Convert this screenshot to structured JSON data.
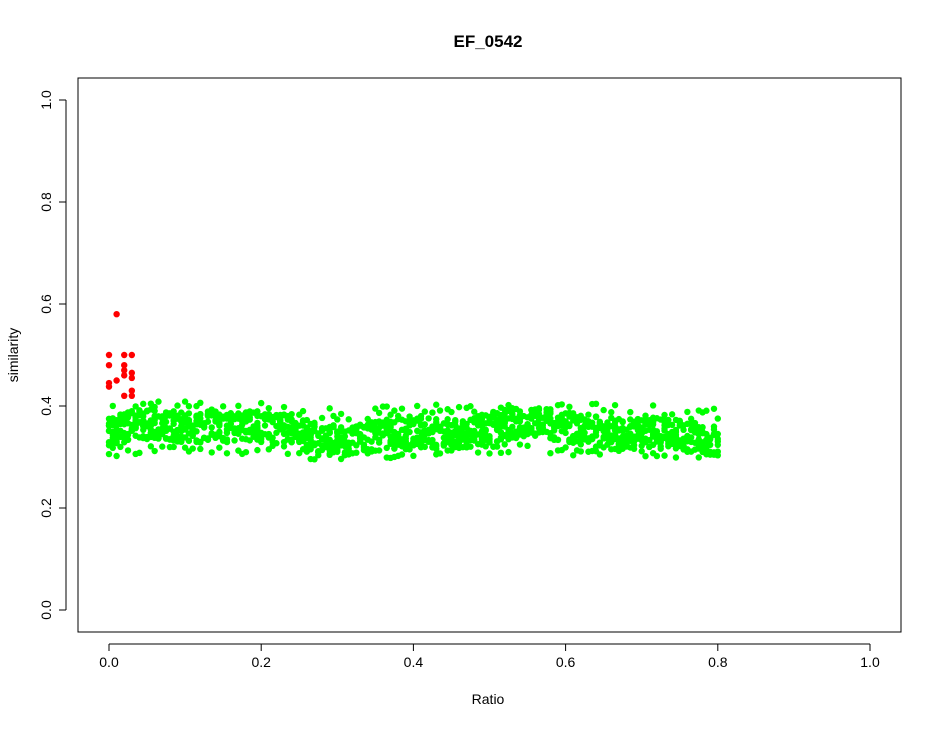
{
  "chart_data": {
    "type": "scatter",
    "title": "EF_0542",
    "xlabel": "Ratio",
    "ylabel": "similarity",
    "xlim": [
      0.0,
      1.0
    ],
    "ylim": [
      0.0,
      1.0
    ],
    "x_ticks": [
      "0.0",
      "0.2",
      "0.4",
      "0.6",
      "0.8",
      "1.0"
    ],
    "y_ticks": [
      "0.0",
      "0.2",
      "0.4",
      "0.6",
      "0.8",
      "1.0"
    ],
    "grid": false,
    "legend": "none",
    "series": [
      {
        "color": "#ff0000",
        "points": [
          [
            0.0,
            0.5
          ],
          [
            0.0,
            0.48
          ],
          [
            0.0,
            0.445
          ],
          [
            0.0,
            0.438
          ],
          [
            0.01,
            0.58
          ],
          [
            0.01,
            0.45
          ],
          [
            0.02,
            0.5
          ],
          [
            0.02,
            0.48
          ],
          [
            0.02,
            0.47
          ],
          [
            0.02,
            0.46
          ],
          [
            0.02,
            0.42
          ],
          [
            0.03,
            0.5
          ],
          [
            0.03,
            0.465
          ],
          [
            0.03,
            0.455
          ],
          [
            0.03,
            0.43
          ],
          [
            0.03,
            0.42
          ]
        ]
      },
      {
        "color": "#00ff00",
        "x_range": [
          0.0,
          0.8
        ],
        "x_step": 0.005,
        "core_band": [
          0.32,
          0.38
        ],
        "outer_band": [
          0.3,
          0.405
        ],
        "band_description": "dense green band across Ratio 0.0–0.8, similarity ~0.30–0.40"
      }
    ]
  }
}
